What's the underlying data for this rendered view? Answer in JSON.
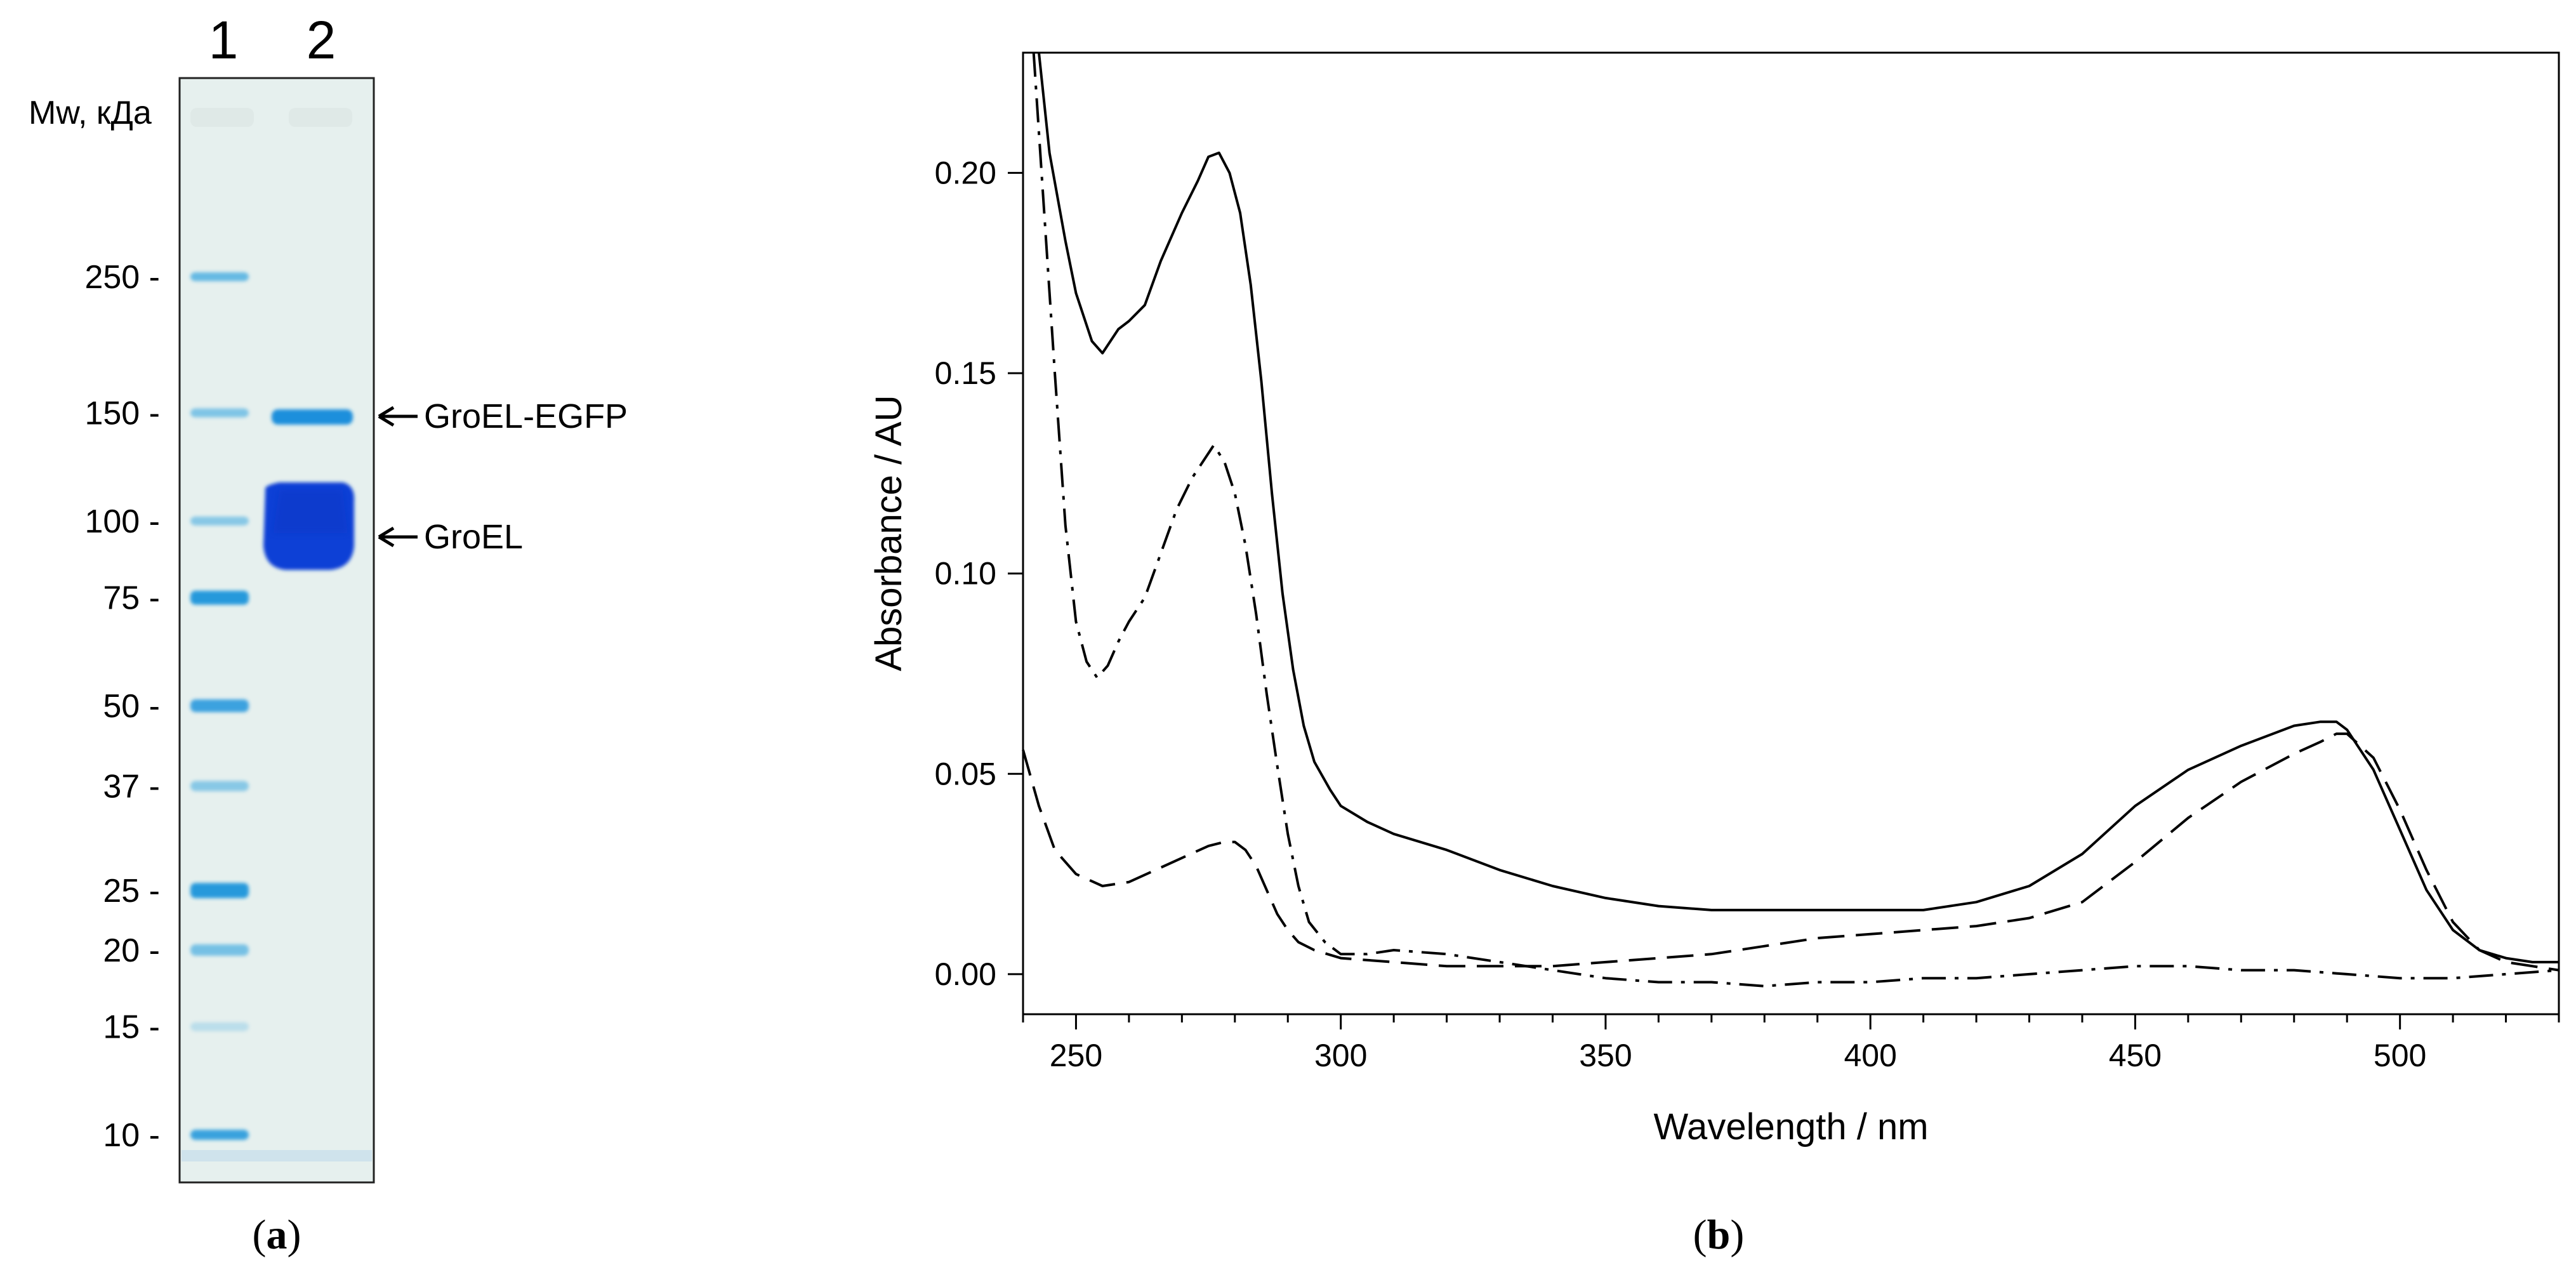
{
  "panel_a": {
    "caption_letter": "a",
    "caption_open": "(",
    "caption_close": ")",
    "mw_label": "Mw, кДа",
    "lane_labels": [
      "1",
      "2"
    ],
    "markers": [
      {
        "label": "250 -",
        "value": 250
      },
      {
        "label": "150 -",
        "value": 150
      },
      {
        "label": "100 -",
        "value": 100
      },
      {
        "label": "75 -",
        "value": 75
      },
      {
        "label": "50 -",
        "value": 50
      },
      {
        "label": "37 -",
        "value": 37
      },
      {
        "label": "25 -",
        "value": 25
      },
      {
        "label": "20 -",
        "value": 20
      },
      {
        "label": "15 -",
        "value": 15
      },
      {
        "label": "10 -",
        "value": 10
      }
    ],
    "band_annotations": [
      {
        "label": "GroEL-EGFP",
        "arrow": "←"
      },
      {
        "label": "GroEL",
        "arrow": "←"
      }
    ],
    "colors": {
      "gel_background": "#e6f0ee",
      "ladder_band": "#3aa7e0",
      "strong_band": "#0a3fd6",
      "fusion_band": "#1a8fdc"
    }
  },
  "chart_data": {
    "type": "line",
    "caption_letter": "b",
    "caption_open": "(",
    "caption_close": ")",
    "title": "",
    "xlabel": "Wavelength / nm",
    "ylabel": "Absorbance / AU",
    "xlim": [
      240,
      530
    ],
    "ylim": [
      -0.01,
      0.23
    ],
    "xticks": [
      250,
      300,
      350,
      400,
      450,
      500
    ],
    "xtick_labels": [
      "250",
      "300",
      "350",
      "400",
      "450",
      "500"
    ],
    "yticks": [
      0.0,
      0.05,
      0.1,
      0.15,
      0.2
    ],
    "ytick_labels": [
      "0.00",
      "0.05",
      "0.10",
      "0.15",
      "0.20"
    ],
    "grid": false,
    "series": [
      {
        "name": "solid",
        "style": "solid",
        "x": [
          243,
          245,
          248,
          250,
          253,
          255,
          258,
          260,
          263,
          266,
          270,
          273,
          275,
          277,
          279,
          281,
          283,
          285,
          287,
          289,
          291,
          293,
          295,
          298,
          300,
          305,
          310,
          320,
          330,
          340,
          350,
          360,
          370,
          380,
          390,
          400,
          410,
          420,
          430,
          440,
          450,
          460,
          470,
          480,
          485,
          488,
          490,
          495,
          500,
          505,
          510,
          515,
          520,
          525,
          530
        ],
        "y": [
          0.23,
          0.205,
          0.183,
          0.17,
          0.158,
          0.155,
          0.161,
          0.163,
          0.167,
          0.178,
          0.19,
          0.198,
          0.204,
          0.205,
          0.2,
          0.19,
          0.172,
          0.148,
          0.12,
          0.095,
          0.076,
          0.062,
          0.053,
          0.046,
          0.042,
          0.038,
          0.035,
          0.031,
          0.026,
          0.022,
          0.019,
          0.017,
          0.016,
          0.016,
          0.016,
          0.016,
          0.016,
          0.018,
          0.022,
          0.03,
          0.042,
          0.051,
          0.057,
          0.062,
          0.063,
          0.063,
          0.061,
          0.051,
          0.036,
          0.021,
          0.011,
          0.006,
          0.004,
          0.003,
          0.003
        ]
      },
      {
        "name": "dash-dot",
        "style": "dashdot",
        "x": [
          242,
          244,
          246,
          248,
          250,
          252,
          254,
          256,
          258,
          260,
          263,
          266,
          269,
          272,
          274,
          276,
          278,
          280,
          282,
          284,
          286,
          288,
          290,
          292,
          294,
          297,
          300,
          305,
          310,
          320,
          330,
          340,
          350,
          360,
          370,
          380,
          390,
          400,
          410,
          420,
          430,
          440,
          450,
          460,
          470,
          480,
          490,
          500,
          510,
          520,
          530
        ],
        "y": [
          0.23,
          0.19,
          0.15,
          0.112,
          0.088,
          0.078,
          0.074,
          0.077,
          0.083,
          0.088,
          0.094,
          0.105,
          0.116,
          0.124,
          0.128,
          0.132,
          0.128,
          0.12,
          0.107,
          0.09,
          0.07,
          0.052,
          0.035,
          0.022,
          0.013,
          0.008,
          0.005,
          0.005,
          0.006,
          0.005,
          0.003,
          0.001,
          -0.001,
          -0.002,
          -0.002,
          -0.003,
          -0.002,
          -0.002,
          -0.001,
          -0.001,
          0.0,
          0.001,
          0.002,
          0.002,
          0.001,
          0.001,
          0.0,
          -0.001,
          -0.001,
          0.0,
          0.001
        ]
      },
      {
        "name": "dashed",
        "style": "dashed",
        "x": [
          240,
          243,
          246,
          250,
          255,
          260,
          265,
          270,
          275,
          278,
          280,
          282,
          284,
          286,
          288,
          290,
          292,
          295,
          300,
          310,
          320,
          330,
          340,
          350,
          360,
          370,
          380,
          390,
          400,
          410,
          420,
          430,
          440,
          450,
          460,
          470,
          480,
          485,
          488,
          490,
          495,
          500,
          505,
          510,
          515,
          520,
          530
        ],
        "y": [
          0.056,
          0.042,
          0.031,
          0.025,
          0.022,
          0.023,
          0.026,
          0.029,
          0.032,
          0.033,
          0.033,
          0.031,
          0.027,
          0.021,
          0.015,
          0.011,
          0.008,
          0.006,
          0.004,
          0.003,
          0.002,
          0.002,
          0.002,
          0.003,
          0.004,
          0.005,
          0.007,
          0.009,
          0.01,
          0.011,
          0.012,
          0.014,
          0.018,
          0.028,
          0.039,
          0.048,
          0.055,
          0.058,
          0.06,
          0.06,
          0.054,
          0.041,
          0.026,
          0.013,
          0.006,
          0.003,
          0.001
        ]
      }
    ],
    "colors": {
      "line": "#000000",
      "axis": "#000000"
    }
  }
}
